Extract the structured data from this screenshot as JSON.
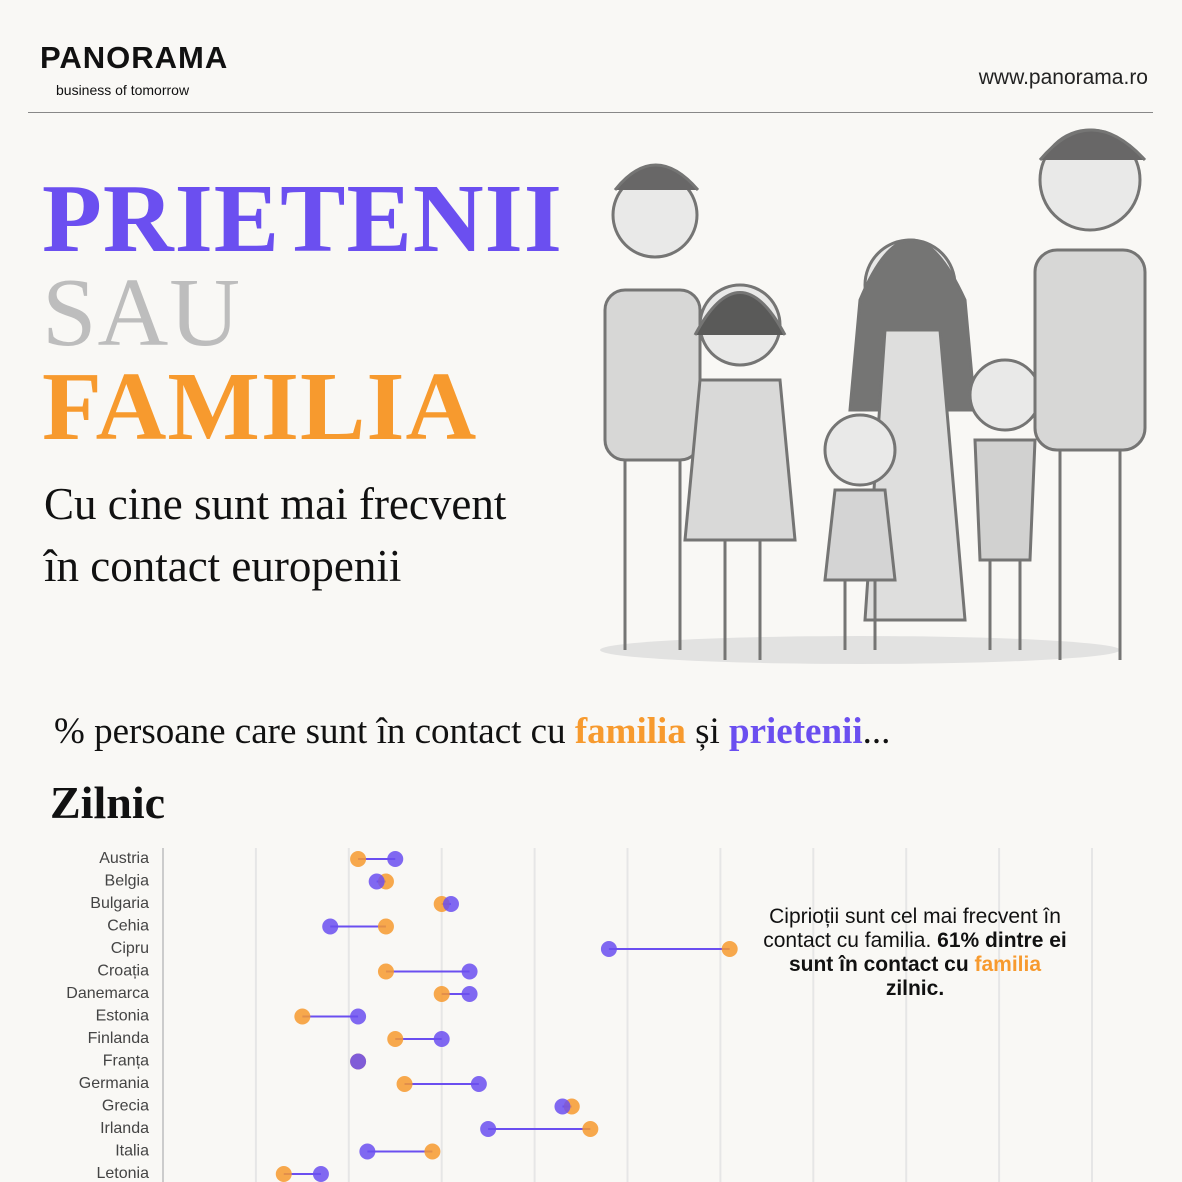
{
  "header": {
    "logo": "PANORAMA",
    "tagline": "business of tomorrow",
    "url": "www.panorama.ro"
  },
  "title": {
    "line1": "PRIETENII",
    "line2": "SAU",
    "line3": "FAMILIA"
  },
  "subtitle": {
    "line1": "Cu cine sunt mai frecvent",
    "line2": "în contact europenii"
  },
  "chart_data": {
    "type": "dumbbell",
    "intro": "% persoane care sunt în contact cu",
    "conjunction": "și",
    "ellipsis": "...",
    "title": "Zilnic",
    "categories": [
      "Austria",
      "Belgia",
      "Bulgaria",
      "Cehia",
      "Cipru",
      "Croația",
      "Danemarca",
      "Estonia",
      "Finlanda",
      "Franța",
      "Germania",
      "Grecia",
      "Irlanda",
      "Italia",
      "Letonia"
    ],
    "series": [
      {
        "name": "familia",
        "color": "#f79a2e",
        "values": [
          21,
          24,
          30,
          24,
          61,
          24,
          30,
          15,
          25,
          21,
          26,
          44,
          46,
          29,
          13
        ]
      },
      {
        "name": "prietenii",
        "color": "#6b4ff0",
        "values": [
          25,
          23,
          31,
          18,
          48,
          33,
          33,
          21,
          30,
          21,
          34,
          43,
          35,
          22,
          17
        ]
      }
    ],
    "xlim": [
      0,
      100
    ],
    "xticks": [
      0,
      10,
      20,
      30,
      40,
      50,
      60,
      70,
      80,
      90,
      100
    ],
    "grid": true,
    "annotation": {
      "text": "Ciprioții sunt cel mai frecvent în contact cu familia.",
      "bold": "61% dintre ei sunt în contact cu",
      "highlight": "familia",
      "end": "zilnic."
    }
  }
}
